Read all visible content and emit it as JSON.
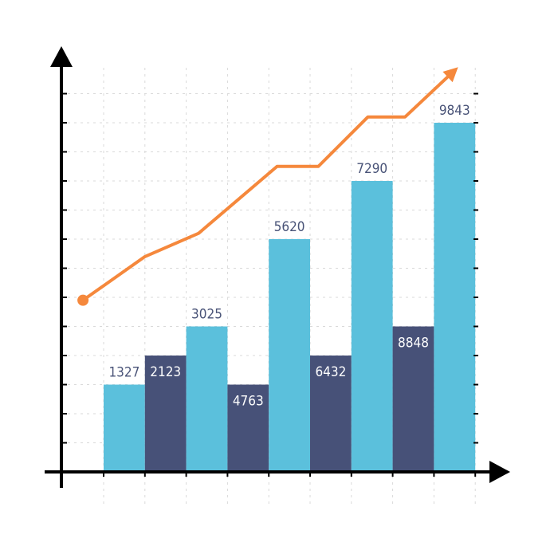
{
  "chart_data": {
    "type": "bar",
    "title": "",
    "xlabel": "",
    "ylabel": "",
    "categories": [
      "",
      "",
      "",
      "",
      "",
      "",
      "",
      "",
      ""
    ],
    "values": [
      1327,
      2123,
      3025,
      4763,
      5620,
      6432,
      7290,
      8848,
      9843
    ],
    "labels": [
      "1327",
      "2123",
      "3025",
      "4763",
      "5620",
      "6432",
      "7290",
      "8848",
      "9843"
    ],
    "bar_heights_relative": [
      3,
      4,
      5,
      3,
      8,
      4,
      10,
      5,
      12
    ],
    "label_position": [
      "above",
      "inside",
      "above",
      "inside",
      "above",
      "inside",
      "above",
      "inside",
      "above"
    ],
    "ylim": [
      0,
      12
    ],
    "grid": true,
    "trend_line": {
      "points": [
        [
          -0.5,
          5.9
        ],
        [
          1,
          7.4
        ],
        [
          2.3,
          8.2
        ],
        [
          4.2,
          10.5
        ],
        [
          5.2,
          10.5
        ],
        [
          6.4,
          12.2
        ],
        [
          7.3,
          12.2
        ],
        [
          8.5,
          13.8
        ]
      ],
      "start_marker": "dot",
      "end_marker": "arrow"
    },
    "colors": {
      "light_bar": "#5bc0dc",
      "dark_bar": "#475178",
      "trend": "#f5883c",
      "axis": "#000000",
      "grid": "#d9d9d9",
      "label_on_dark": "#ffffff",
      "label_on_light": "#4a5478"
    }
  }
}
